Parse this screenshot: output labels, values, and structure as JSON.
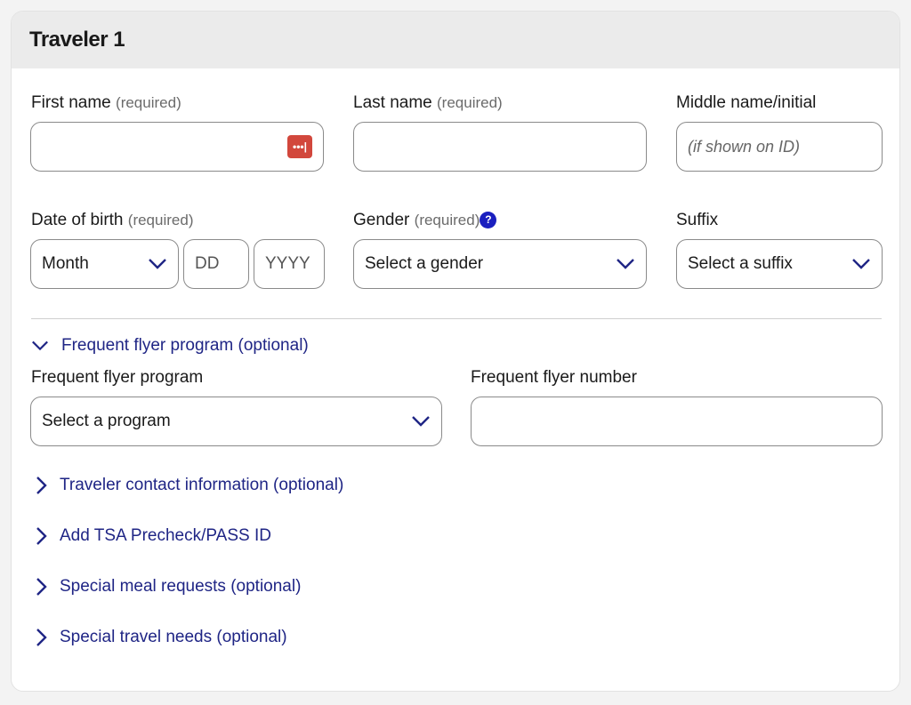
{
  "title": "Traveler 1",
  "required": "(required)",
  "first_name": {
    "label": "First name",
    "value": ""
  },
  "last_name": {
    "label": "Last name",
    "value": ""
  },
  "middle_name": {
    "label": "Middle name/initial",
    "placeholder": "(if shown on ID)"
  },
  "dob": {
    "label": "Date of birth",
    "month": "Month",
    "day": "DD",
    "year": "YYYY"
  },
  "gender": {
    "label": "Gender",
    "value": "Select a gender",
    "help": "?"
  },
  "suffix": {
    "label": "Suffix",
    "value": "Select a suffix"
  },
  "ff_toggle": "Frequent flyer program (optional)",
  "ff_program": {
    "label": "Frequent flyer program",
    "value": "Select a program"
  },
  "ff_number": {
    "label": "Frequent flyer number",
    "value": ""
  },
  "sections": [
    "Traveler contact information (optional)",
    "Add TSA Precheck/PASS ID",
    "Special meal requests (optional)",
    "Special travel needs (optional)"
  ],
  "password_manager_icon": "•••|",
  "colors": {
    "link": "#1f2585",
    "help": "#1a1fbf",
    "password_icon": "#d2473c"
  }
}
